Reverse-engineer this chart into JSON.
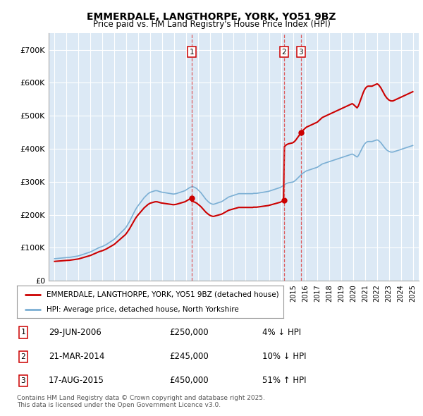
{
  "title": "EMMERDALE, LANGTHORPE, YORK, YO51 9BZ",
  "subtitle": "Price paid vs. HM Land Registry's House Price Index (HPI)",
  "background_color": "#dce9f5",
  "ylim": [
    0,
    750000
  ],
  "yticks": [
    0,
    100000,
    200000,
    300000,
    400000,
    500000,
    600000,
    700000
  ],
  "ytick_labels": [
    "£0",
    "£100K",
    "£200K",
    "£300K",
    "£400K",
    "£500K",
    "£600K",
    "£700K"
  ],
  "xlim_start": 1994.5,
  "xlim_end": 2025.5,
  "xtick_years": [
    1995,
    1996,
    1997,
    1998,
    1999,
    2000,
    2001,
    2002,
    2003,
    2004,
    2005,
    2006,
    2007,
    2008,
    2009,
    2010,
    2011,
    2012,
    2013,
    2014,
    2015,
    2016,
    2017,
    2018,
    2019,
    2020,
    2021,
    2022,
    2023,
    2024,
    2025
  ],
  "red_line_color": "#cc0000",
  "blue_line_color": "#7bafd4",
  "vline_color": "#dd4444",
  "transaction_markers": [
    {
      "year": 2006.49,
      "value": 250000,
      "label": "1"
    },
    {
      "year": 2014.22,
      "value": 245000,
      "label": "2"
    },
    {
      "year": 2015.63,
      "value": 450000,
      "label": "3"
    }
  ],
  "legend_entries": [
    "EMMERDALE, LANGTHORPE, YORK, YO51 9BZ (detached house)",
    "HPI: Average price, detached house, North Yorkshire"
  ],
  "table_entries": [
    {
      "num": "1",
      "date": "29-JUN-2006",
      "price": "£250,000",
      "hpi": "4% ↓ HPI"
    },
    {
      "num": "2",
      "date": "21-MAR-2014",
      "price": "£245,000",
      "hpi": "10% ↓ HPI"
    },
    {
      "num": "3",
      "date": "17-AUG-2015",
      "price": "£450,000",
      "hpi": "51% ↑ HPI"
    }
  ],
  "footer": "Contains HM Land Registry data © Crown copyright and database right 2025.\nThis data is licensed under the Open Government Licence v3.0.",
  "hpi_monthly": [
    67000,
    67300,
    67600,
    67900,
    68200,
    68500,
    68800,
    69100,
    69400,
    69700,
    70000,
    70200,
    70400,
    70600,
    70800,
    71000,
    71500,
    72000,
    72500,
    73000,
    73500,
    74000,
    74500,
    75000,
    75500,
    76500,
    77500,
    78500,
    79500,
    80500,
    81500,
    82500,
    83500,
    84500,
    85500,
    86500,
    87500,
    89000,
    90500,
    92000,
    93500,
    95000,
    96500,
    98000,
    99500,
    101000,
    102000,
    103000,
    104000,
    105500,
    107000,
    108500,
    110000,
    112000,
    114000,
    116000,
    118000,
    120000,
    122000,
    124000,
    126000,
    129000,
    132000,
    135000,
    138000,
    141000,
    144000,
    147000,
    150000,
    153000,
    156000,
    159000,
    163000,
    168000,
    173000,
    178000,
    184000,
    190000,
    196000,
    202000,
    208000,
    214000,
    219000,
    224000,
    228000,
    232000,
    236000,
    240000,
    244000,
    248000,
    252000,
    255000,
    258000,
    261000,
    264000,
    266000,
    268000,
    269000,
    270000,
    271000,
    272000,
    273000,
    273000,
    273000,
    272000,
    271000,
    270000,
    269000,
    268500,
    268000,
    267500,
    267000,
    266500,
    266000,
    265500,
    265000,
    264500,
    264000,
    263500,
    263000,
    263000,
    263500,
    264000,
    265000,
    266000,
    267000,
    268000,
    269000,
    270000,
    271000,
    272000,
    273000,
    275000,
    277000,
    279000,
    281000,
    283000,
    284000,
    285000,
    285000,
    284000,
    283000,
    281000,
    279000,
    276000,
    273000,
    270000,
    267000,
    263000,
    259000,
    255000,
    251000,
    247000,
    244000,
    241000,
    238000,
    236000,
    234000,
    233000,
    232000,
    232000,
    233000,
    234000,
    235000,
    236000,
    237000,
    238000,
    239000,
    240000,
    242000,
    244000,
    246000,
    248000,
    250000,
    252000,
    254000,
    255000,
    256000,
    257000,
    258000,
    259000,
    260000,
    261000,
    262000,
    263000,
    264000,
    264000,
    264000,
    264000,
    264000,
    264000,
    264000,
    264000,
    264000,
    264000,
    264000,
    264000,
    264000,
    264000,
    264000,
    265000,
    265000,
    265000,
    265000,
    265500,
    266000,
    266500,
    267000,
    267500,
    268000,
    268500,
    269000,
    269500,
    270000,
    270500,
    271000,
    272000,
    273000,
    274000,
    275000,
    276000,
    277000,
    278000,
    279000,
    280000,
    281000,
    282000,
    283000,
    285000,
    287000,
    289000,
    291000,
    293000,
    295000,
    296000,
    297000,
    297500,
    298000,
    298500,
    299000,
    300000,
    302000,
    304000,
    307000,
    310000,
    313000,
    316000,
    319000,
    322000,
    325000,
    327000,
    329000,
    331000,
    333000,
    334000,
    335000,
    336000,
    337000,
    338000,
    339000,
    340000,
    341000,
    342000,
    343000,
    344000,
    346000,
    348000,
    350000,
    352000,
    354000,
    355000,
    356000,
    357000,
    358000,
    359000,
    360000,
    361000,
    362000,
    363000,
    364000,
    365000,
    366000,
    367000,
    368000,
    369000,
    370000,
    371000,
    372000,
    373000,
    374000,
    375000,
    376000,
    377000,
    378000,
    379000,
    380000,
    381000,
    382000,
    383000,
    384000,
    383000,
    381000,
    379000,
    377000,
    375000,
    378000,
    383000,
    389000,
    395000,
    401000,
    407000,
    412000,
    416000,
    419000,
    421000,
    422000,
    422000,
    422000,
    422000,
    422000,
    423000,
    424000,
    425000,
    426000,
    427000,
    426000,
    424000,
    421000,
    418000,
    414000,
    410000,
    406000,
    402000,
    399000,
    396000,
    394000,
    392000,
    391000,
    390000,
    390000,
    390000,
    391000,
    392000,
    393000,
    394000,
    395000,
    396000,
    397000,
    398000,
    399000,
    400000,
    401000,
    402000,
    403000,
    404000,
    405000,
    406000,
    407000,
    408000,
    409000,
    410000
  ]
}
